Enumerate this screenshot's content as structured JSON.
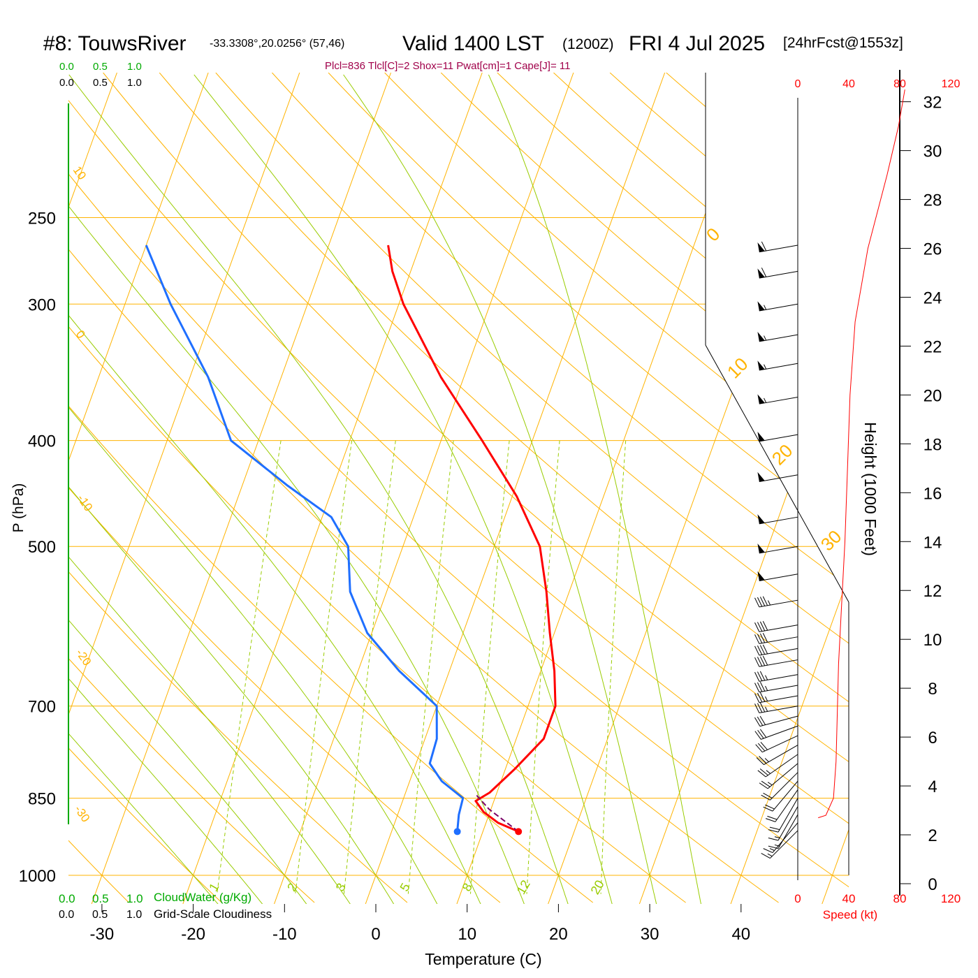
{
  "header": {
    "station": "#8: TouwsRiver",
    "coords": "-33.3308°,20.0256° (57,46)",
    "valid": "Valid 1400 LST",
    "zulu": "(1200Z)",
    "date": "FRI 4 Jul 2025",
    "forecast": "[24hrFcst@1553z]",
    "indices": "Plcl=836 Tlcl[C]=2 Shox=11 Pwat[cm]=1 Cape[J]= 11"
  },
  "colors": {
    "temperature": "#ff0000",
    "dewpoint": "#1f6fff",
    "isotherm_isobar": "#ffb300",
    "dry_adiabat": "#ffb300",
    "moist_adiabat": "#99cc00",
    "mixing_ratio": "#99cc00",
    "cloud_water": "#00aa00",
    "title_indices": "#a0004a",
    "wind_speed": "#ff0000"
  },
  "chart_data": {
    "type": "skew-t",
    "xlabel": "Temperature (C)",
    "ylabel": "P (hPa)",
    "right_ylabel": "Height (1000 Feet)",
    "x_ticks": [
      -30,
      -20,
      -10,
      0,
      10,
      20,
      30,
      40
    ],
    "pressure_levels": [
      250,
      300,
      400,
      500,
      700,
      850,
      1000
    ],
    "pressure_range": [
      250,
      1050
    ],
    "temperature_profile": [
      {
        "p": 912,
        "t": 13.9
      },
      {
        "p": 895,
        "t": 11.3
      },
      {
        "p": 875,
        "t": 9.3
      },
      {
        "p": 855,
        "t": 8.0
      },
      {
        "p": 840,
        "t": 9.2
      },
      {
        "p": 800,
        "t": 11.0
      },
      {
        "p": 750,
        "t": 13.0
      },
      {
        "p": 700,
        "t": 13.0
      },
      {
        "p": 650,
        "t": 11.5
      },
      {
        "p": 600,
        "t": 9.5
      },
      {
        "p": 550,
        "t": 7.5
      },
      {
        "p": 500,
        "t": 5.0
      },
      {
        "p": 450,
        "t": 0.5
      },
      {
        "p": 400,
        "t": -5.5
      },
      {
        "p": 350,
        "t": -12.5
      },
      {
        "p": 300,
        "t": -19.5
      },
      {
        "p": 280,
        "t": -22.0
      },
      {
        "p": 265,
        "t": -23.5
      }
    ],
    "dewpoint_profile": [
      {
        "p": 912,
        "td": 7.2
      },
      {
        "p": 880,
        "td": 6.7
      },
      {
        "p": 850,
        "td": 6.5
      },
      {
        "p": 820,
        "td": 3.5
      },
      {
        "p": 790,
        "td": 1.5
      },
      {
        "p": 750,
        "td": 1.3
      },
      {
        "p": 700,
        "td": 0.0
      },
      {
        "p": 650,
        "td": -5.5
      },
      {
        "p": 600,
        "td": -10.5
      },
      {
        "p": 550,
        "td": -14.0
      },
      {
        "p": 500,
        "td": -16.0
      },
      {
        "p": 470,
        "td": -19.0
      },
      {
        "p": 440,
        "td": -25.0
      },
      {
        "p": 400,
        "td": -33.0
      },
      {
        "p": 350,
        "td": -38.0
      },
      {
        "p": 300,
        "td": -45.0
      },
      {
        "p": 265,
        "td": -50.0
      }
    ],
    "parcel_profile": [
      {
        "p": 912,
        "t": 13.9
      },
      {
        "p": 870,
        "t": 9.8
      },
      {
        "p": 845,
        "t": 7.9
      }
    ],
    "surface": {
      "p": 912,
      "t": 13.9,
      "td": 7.2
    },
    "isotherm_labels": [
      0,
      10,
      20,
      30
    ],
    "dry_adiabat_labels": [
      10,
      0,
      -10,
      -20,
      -30
    ],
    "mixing_ratio_labels": [
      "1",
      "2",
      "3",
      "5",
      "8",
      "12",
      "20"
    ],
    "mixing_ratios": [
      1,
      2,
      3,
      5,
      8,
      12,
      20
    ],
    "moist_adiabat_thetaw": [
      -20,
      -15,
      -10,
      -5,
      0,
      5,
      10,
      15,
      20,
      25,
      30,
      35
    ],
    "cloud_scale": {
      "top_green": [
        "0.0",
        "0.5",
        "1.0"
      ],
      "top_black": [
        "0.0",
        "0.5",
        "1.0"
      ],
      "bottom_green": [
        "0.0",
        "0.5",
        "1.0"
      ],
      "bottom_black": [
        "0.0",
        "0.5",
        "1.0"
      ],
      "cloud_water_label": "CloudWater (g/Kg)",
      "cloudiness_label": "Grid-Scale Cloudiness"
    },
    "wind_speed_scale": {
      "ticks": [
        "0",
        "40",
        "80",
        "120"
      ],
      "xlabel": "Speed (kt)"
    },
    "height_ticks": [
      0,
      2,
      4,
      6,
      8,
      10,
      12,
      14,
      16,
      18,
      20,
      22,
      24,
      26,
      28,
      30,
      32
    ],
    "wind_barbs": [
      {
        "p": 265,
        "dir": 280,
        "spd": 60
      },
      {
        "p": 280,
        "dir": 280,
        "spd": 60
      },
      {
        "p": 300,
        "dir": 280,
        "spd": 55
      },
      {
        "p": 320,
        "dir": 280,
        "spd": 55
      },
      {
        "p": 340,
        "dir": 280,
        "spd": 55
      },
      {
        "p": 365,
        "dir": 280,
        "spd": 55
      },
      {
        "p": 395,
        "dir": 280,
        "spd": 50
      },
      {
        "p": 430,
        "dir": 280,
        "spd": 50
      },
      {
        "p": 470,
        "dir": 280,
        "spd": 50
      },
      {
        "p": 500,
        "dir": 280,
        "spd": 50
      },
      {
        "p": 530,
        "dir": 280,
        "spd": 50
      },
      {
        "p": 560,
        "dir": 280,
        "spd": 45
      },
      {
        "p": 590,
        "dir": 280,
        "spd": 40
      },
      {
        "p": 605,
        "dir": 280,
        "spd": 40
      },
      {
        "p": 620,
        "dir": 280,
        "spd": 40
      },
      {
        "p": 635,
        "dir": 280,
        "spd": 40
      },
      {
        "p": 655,
        "dir": 280,
        "spd": 35
      },
      {
        "p": 670,
        "dir": 280,
        "spd": 35
      },
      {
        "p": 685,
        "dir": 280,
        "spd": 35
      },
      {
        "p": 700,
        "dir": 280,
        "spd": 35
      },
      {
        "p": 715,
        "dir": 285,
        "spd": 30
      },
      {
        "p": 730,
        "dir": 290,
        "spd": 30
      },
      {
        "p": 745,
        "dir": 295,
        "spd": 30
      },
      {
        "p": 760,
        "dir": 300,
        "spd": 25
      },
      {
        "p": 775,
        "dir": 305,
        "spd": 25
      },
      {
        "p": 790,
        "dir": 310,
        "spd": 25
      },
      {
        "p": 805,
        "dir": 315,
        "spd": 20
      },
      {
        "p": 820,
        "dir": 320,
        "spd": 20
      },
      {
        "p": 835,
        "dir": 325,
        "spd": 20
      },
      {
        "p": 850,
        "dir": 330,
        "spd": 20
      },
      {
        "p": 865,
        "dir": 330,
        "spd": 15
      },
      {
        "p": 880,
        "dir": 330,
        "spd": 15
      },
      {
        "p": 895,
        "dir": 320,
        "spd": 15
      },
      {
        "p": 910,
        "dir": 315,
        "spd": 15
      }
    ],
    "wind_speed_profile": [
      {
        "h": 2.7,
        "spd": 16
      },
      {
        "h": 2.8,
        "spd": 22
      },
      {
        "h": 3.5,
        "spd": 28
      },
      {
        "h": 5,
        "spd": 30
      },
      {
        "h": 7,
        "spd": 31
      },
      {
        "h": 9,
        "spd": 32
      },
      {
        "h": 11,
        "spd": 34
      },
      {
        "h": 14,
        "spd": 37
      },
      {
        "h": 17,
        "spd": 39
      },
      {
        "h": 20,
        "spd": 41
      },
      {
        "h": 23,
        "spd": 45
      },
      {
        "h": 26,
        "spd": 55
      },
      {
        "h": 29,
        "spd": 70
      },
      {
        "h": 31,
        "spd": 79
      },
      {
        "h": 32.5,
        "spd": 84
      }
    ]
  }
}
